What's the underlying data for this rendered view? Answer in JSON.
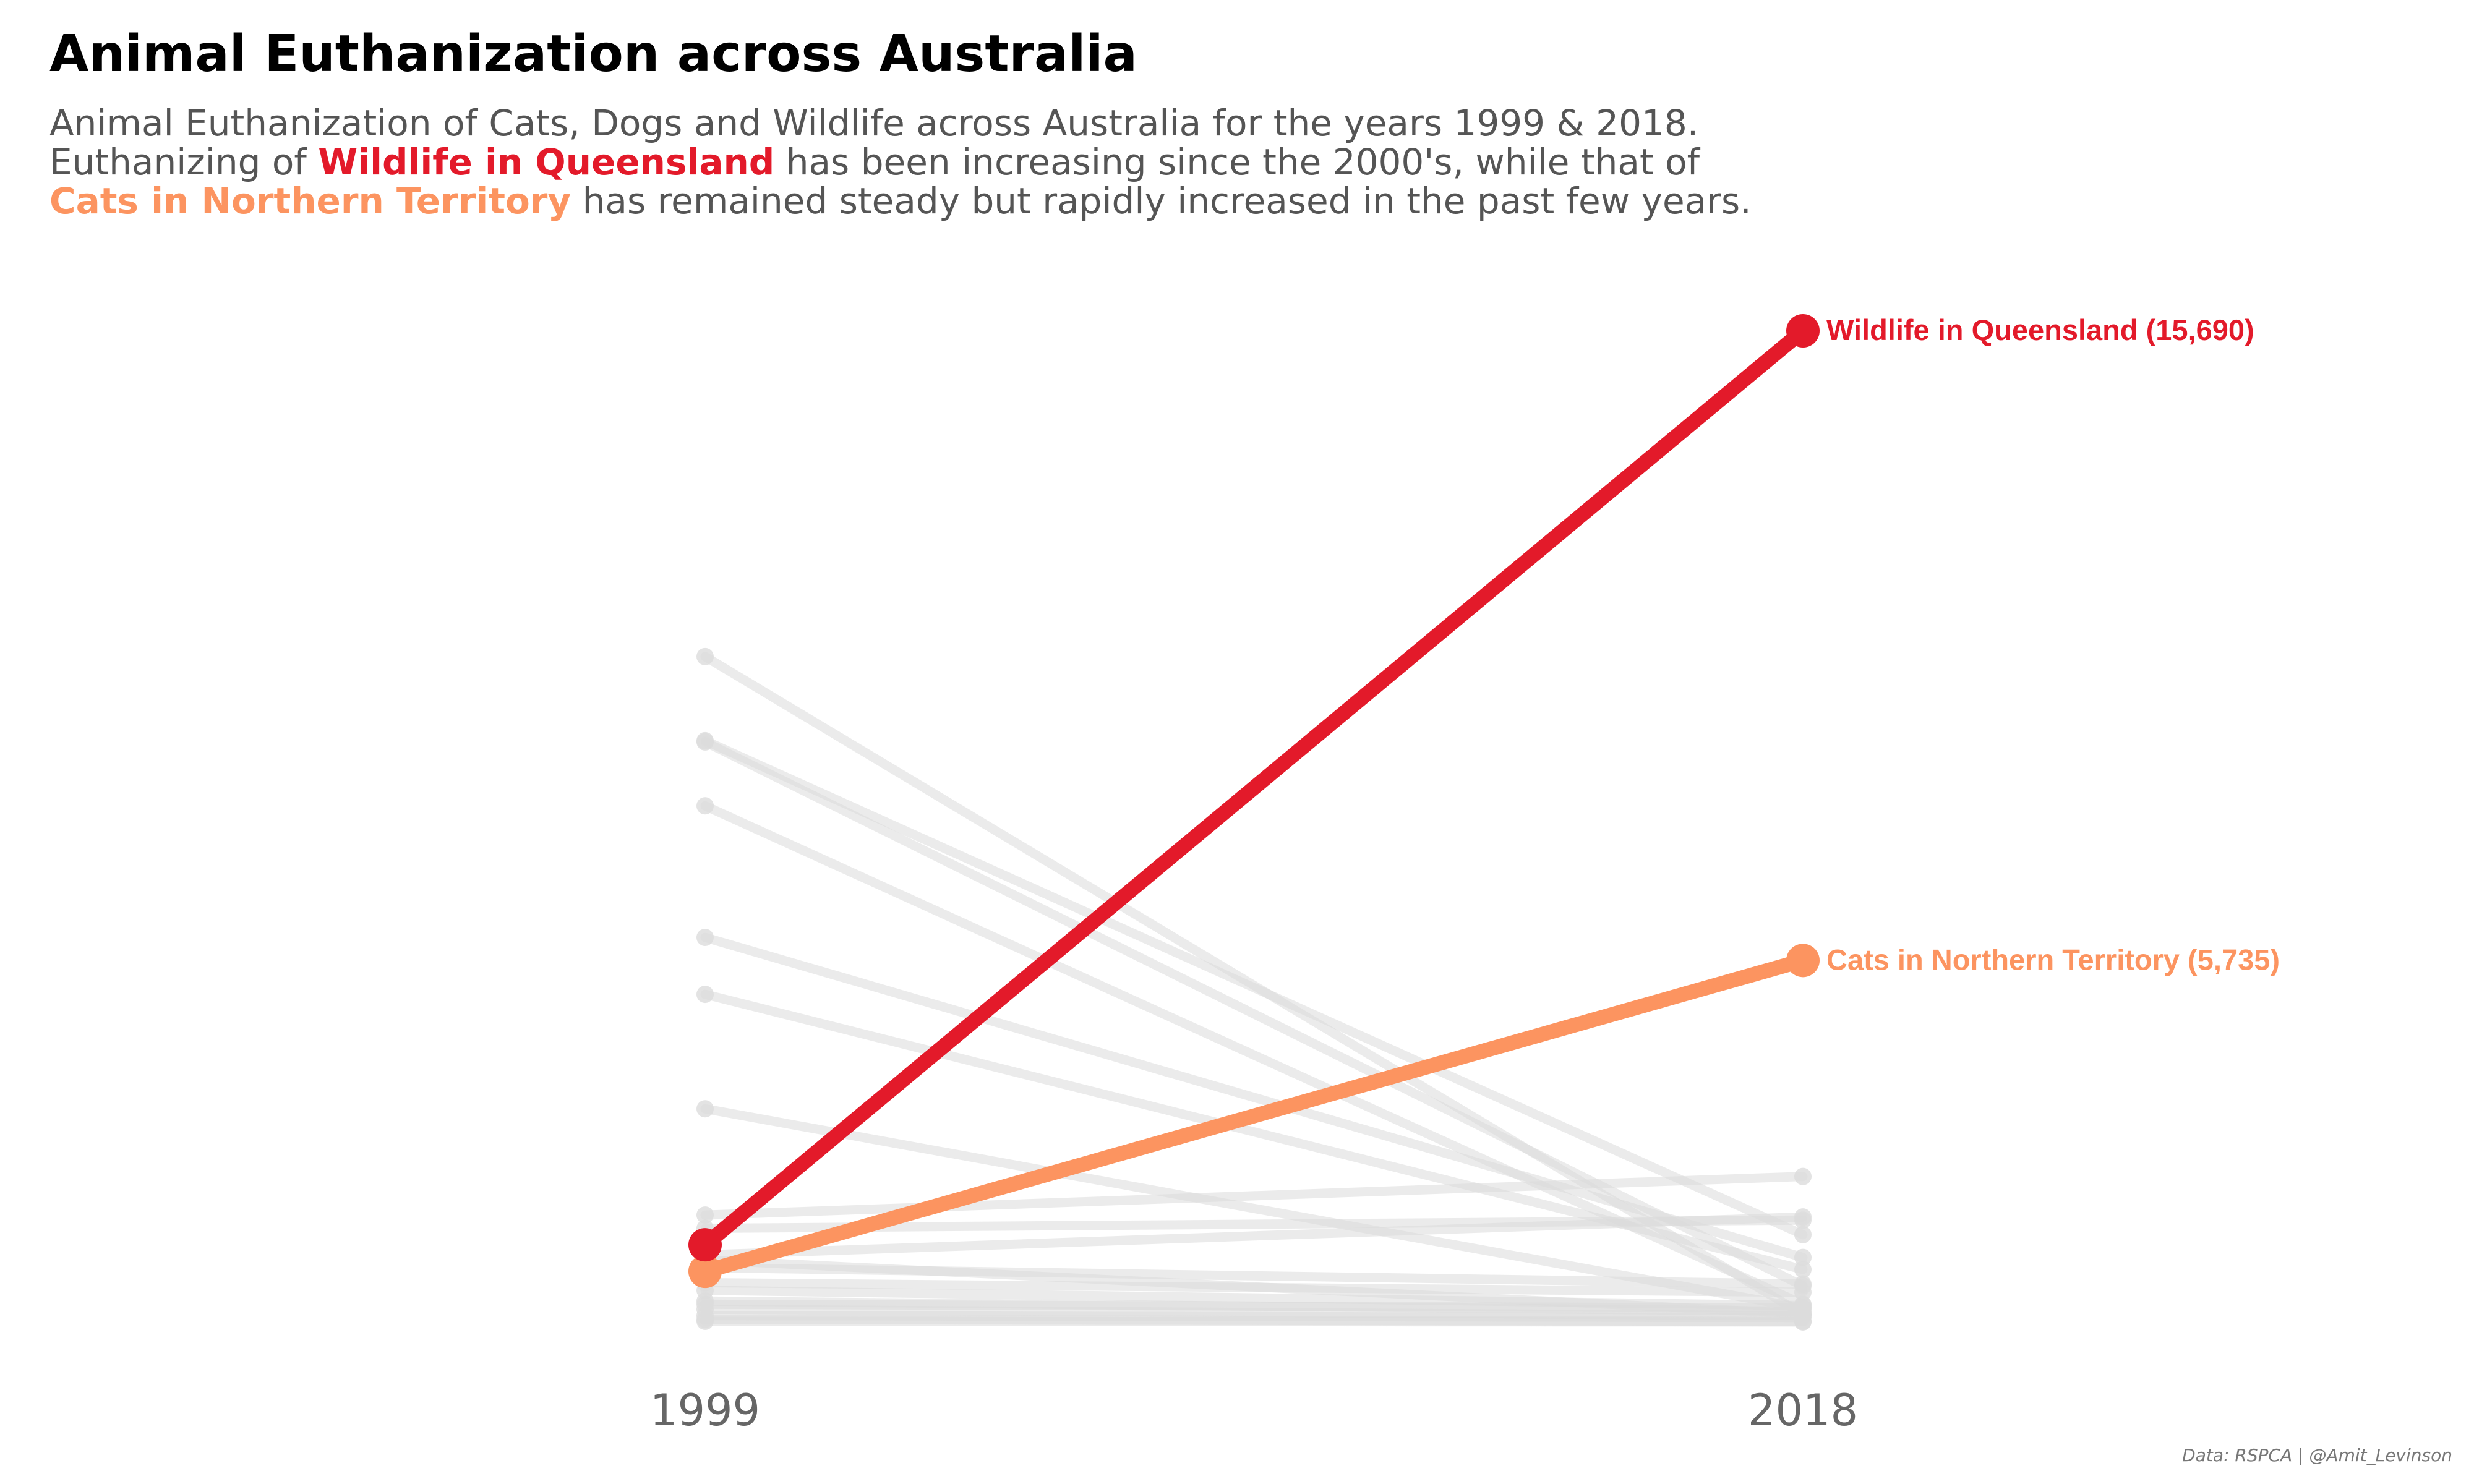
{
  "header": {
    "title": "Animal Euthanization across Australia",
    "subtitle_line1": "Animal Euthanization of Cats, Dogs and Wildlife across Australia for the years 1999 & 2018.",
    "subtitle_line2_before": "Euthanizing of ",
    "subtitle_line2_highlight": "Wildlife in Queensland",
    "subtitle_line2_after": " has been increasing since the 2000's, while that of",
    "subtitle_line3_highlight": "Cats in Northern Territory",
    "subtitle_line3_after": " has remained steady but rapidly increased in the past few years."
  },
  "colors": {
    "highlight_primary": "#e31a2a",
    "highlight_secondary": "#fc9460",
    "background_series": "#dcdcdc",
    "axis_text": "#666666"
  },
  "chart_data": {
    "type": "line",
    "chart_style": "slope",
    "title": "Animal Euthanization across Australia",
    "x": [
      "1999",
      "2018"
    ],
    "xlabel": "",
    "ylabel": "",
    "ylim": [
      0,
      15690
    ],
    "grid": false,
    "highlighted": [
      {
        "name": "Wildlife in Queensland",
        "values": [
          1240,
          15690
        ],
        "label": "Wildlife in Queensland (15,690)",
        "color": "#e31a2a"
      },
      {
        "name": "Cats in Northern Territory",
        "values": [
          820,
          5735
        ],
        "label": "Cats in Northern Territory (5,735)",
        "color": "#fc9460"
      }
    ],
    "series": [
      {
        "values": [
          10540,
          140
        ]
      },
      {
        "values": [
          9210,
          1400
        ]
      },
      {
        "values": [
          9190,
          590
        ]
      },
      {
        "values": [
          8180,
          300
        ]
      },
      {
        "values": [
          6100,
          1040
        ]
      },
      {
        "values": [
          5200,
          850
        ]
      },
      {
        "values": [
          3390,
          240
        ]
      },
      {
        "values": [
          1710,
          2320
        ]
      },
      {
        "values": [
          1500,
          1630
        ]
      },
      {
        "values": [
          1080,
          1680
        ]
      },
      {
        "values": [
          1000,
          150
        ]
      },
      {
        "values": [
          880,
          620
        ]
      },
      {
        "values": [
          640,
          490
        ]
      },
      {
        "values": [
          520,
          280
        ]
      },
      {
        "values": [
          350,
          190
        ]
      },
      {
        "values": [
          300,
          240
        ]
      },
      {
        "values": [
          220,
          120
        ]
      },
      {
        "values": [
          120,
          90
        ]
      },
      {
        "values": [
          60,
          30
        ]
      },
      {
        "values": [
          30,
          20
        ]
      }
    ]
  },
  "caption": "Data: RSPCA | @Amit_Levinson"
}
